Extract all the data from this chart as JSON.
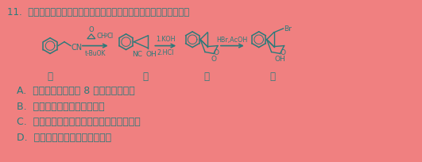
{
  "background_color": "#F08080",
  "title_text": "11.  抗抑郁药米那普伦中间体的合成路线如图所示。下列说法正确的是",
  "options": [
    "A.  化合物甲中最多有 8 个碳原子共平面",
    "B.  化合物乙不能发生消去反应",
    "C.  化合物丙转化为化合物丁发生了加成反应",
    "D.  化合物丁与苯乙酸互为同系物"
  ],
  "fig_width": 5.31,
  "fig_height": 2.05,
  "dpi": 100,
  "title_fontsize": 8.5,
  "option_fontsize": 9.0,
  "text_color": "#2a7a7a",
  "chem_color": "#2a7a7a"
}
